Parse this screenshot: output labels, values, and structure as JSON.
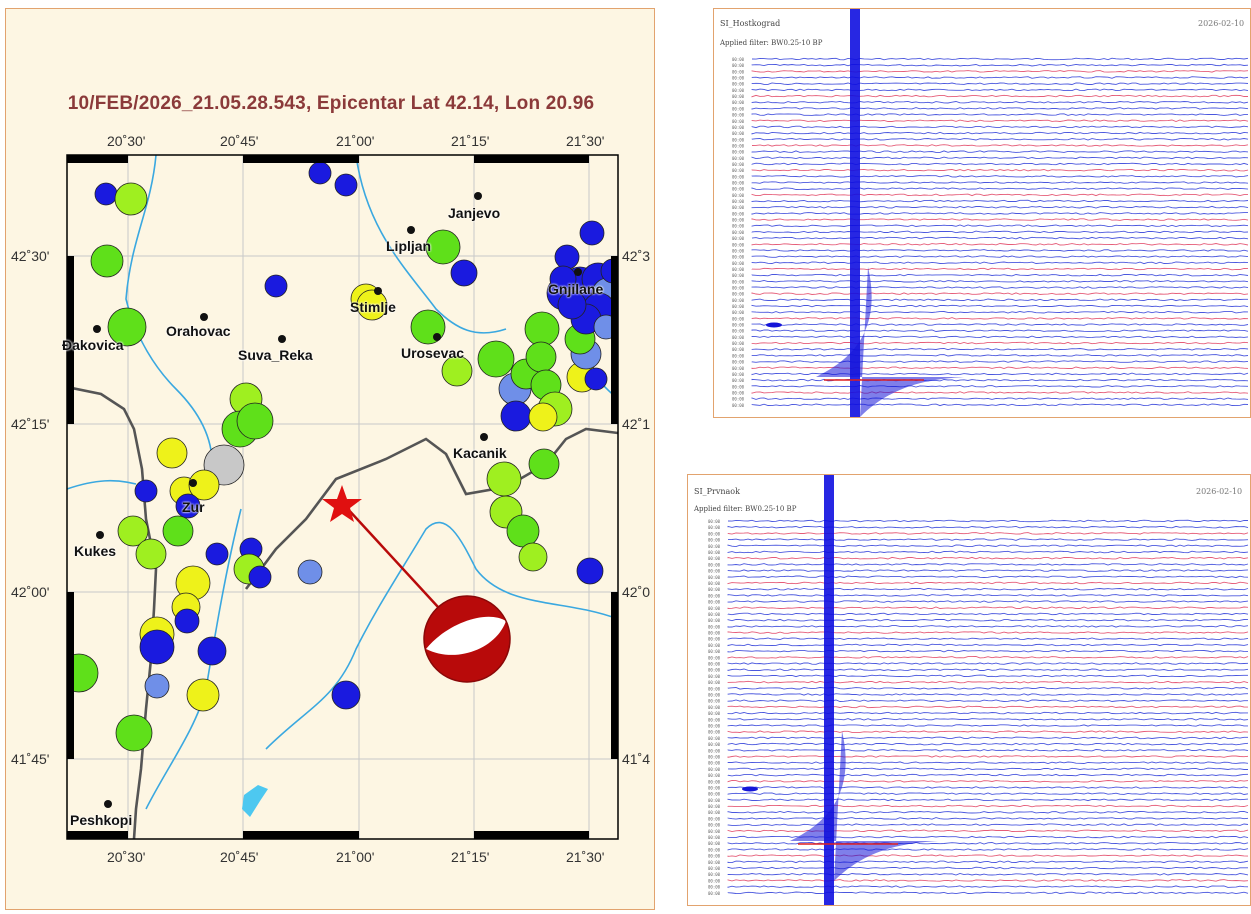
{
  "map": {
    "title": "10/FEB/2026_21.05.28.543, Epicentar Lat 42.14, Lon 20.96",
    "x_ticks_top": [
      "20˚30'",
      "20˚45'",
      "21˚00'",
      "21˚15'",
      "21˚30'"
    ],
    "x_ticks_bottom": [
      "20˚30'",
      "20˚45'",
      "21˚00'",
      "21˚15'",
      "21˚30'"
    ],
    "y_ticks_left": [
      "42˚30'",
      "42˚15'",
      "42˚00'",
      "41˚45'"
    ],
    "y_ticks_right": [
      "42˚3",
      "42˚1",
      "42˚0",
      "41˚4"
    ],
    "cities": [
      "Janjevo",
      "Lipljan",
      "Gnjilane",
      "Stimlje",
      "Orahovac",
      "Ðakovica",
      "Suva_Reka",
      "Urosevac",
      "Kacanik",
      "Zur",
      "Kukes",
      "Peshkopi"
    ],
    "epicenter_marker": "star-icon",
    "focal_mechanism": "beachball-icon",
    "colors": {
      "title": "#8b3a3a",
      "epicenter": "#e01010",
      "beachball": "#b80a0a",
      "river": "#3aa8e0",
      "border": "#555555"
    }
  },
  "seismograms": [
    {
      "station": "SI_Hostkograd",
      "filter": "Applied filter: BW0.25-10 BP",
      "date": "2026-02-10"
    },
    {
      "station": "SI_Prvnaok",
      "filter": "Applied filter: BW0.25-10 BP",
      "date": "2026-02-10"
    }
  ]
}
